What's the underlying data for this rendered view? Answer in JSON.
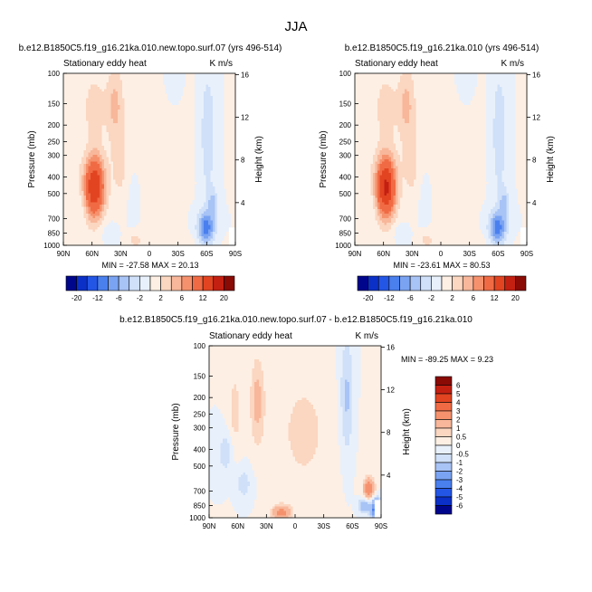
{
  "figure_title": "JJA",
  "chart_data": [
    {
      "type": "heatmap",
      "title": "b.e12.B1850C5.f19_g16.21ka.010.new.topo.surf.07 (yrs 496-514)",
      "subtitle_left": "Stationary eddy heat",
      "units": "K m/s",
      "ylabel": "Pressure (mb)",
      "ylabel_right": "Height (km)",
      "x_ticks": [
        "90N",
        "60N",
        "30N",
        "0",
        "30S",
        "60S",
        "90S"
      ],
      "y_ticks": [
        "100",
        "150",
        "200",
        "250",
        "300",
        "400",
        "500",
        "700",
        "850",
        "1000"
      ],
      "y_right_ticks": [
        "16",
        "12",
        "8",
        "4"
      ],
      "min": "-27.58",
      "max": "20.13",
      "stats_label": "MIN = -27.58   MAX =  20.13",
      "colorbar_labels": [
        "-20",
        "-12",
        "-6",
        "-2",
        "2",
        "6",
        "12",
        "20"
      ]
    },
    {
      "type": "heatmap",
      "title": "b.e12.B1850C5.f19_g16.21ka.010 (yrs 496-514)",
      "subtitle_left": "Stationary eddy heat",
      "units": "K m/s",
      "ylabel": "Pressure (mb)",
      "ylabel_right": "Height (km)",
      "x_ticks": [
        "90N",
        "60N",
        "30N",
        "0",
        "30S",
        "60S",
        "90S"
      ],
      "y_ticks": [
        "100",
        "150",
        "200",
        "250",
        "300",
        "400",
        "500",
        "700",
        "850",
        "1000"
      ],
      "y_right_ticks": [
        "16",
        "12",
        "8",
        "4"
      ],
      "min": "-23.61",
      "max": "80.53",
      "stats_label": "MIN = -23.61   MAX =  80.53",
      "colorbar_labels": [
        "-20",
        "-12",
        "-6",
        "-2",
        "2",
        "6",
        "12",
        "20"
      ]
    },
    {
      "type": "heatmap",
      "title": "b.e12.B1850C5.f19_g16.21ka.010.new.topo.surf.07 - b.e12.B1850C5.f19_g16.21ka.010",
      "subtitle_left": "Stationary eddy heat",
      "units": "K m/s",
      "ylabel": "Pressure (mb)",
      "ylabel_right": "Height (km)",
      "x_ticks": [
        "90N",
        "60N",
        "30N",
        "0",
        "30S",
        "60S",
        "90S"
      ],
      "y_ticks": [
        "100",
        "150",
        "200",
        "250",
        "300",
        "400",
        "500",
        "700",
        "850",
        "1000"
      ],
      "y_right_ticks": [
        "16",
        "12",
        "8",
        "4"
      ],
      "min": "-89.25",
      "max": "9.23",
      "stats_label": "MIN = -89.25   MAX =   9.23",
      "colorbar_labels": [
        "6",
        "5",
        "4",
        "3",
        "2",
        "1",
        "0.5",
        "0",
        "-0.5",
        "-1",
        "-2",
        "-3",
        "-4",
        "-5",
        "-6"
      ]
    }
  ],
  "colors": {
    "scale_abs": [
      "#00068c",
      "#0b30c8",
      "#2456e6",
      "#4a7fee",
      "#7aa3f2",
      "#a8c3f5",
      "#cfe0f8",
      "#e8f0fb",
      "#fdefe4",
      "#fbd6c0",
      "#f8b79a",
      "#f5926d",
      "#f06b44",
      "#e24421",
      "#c42012",
      "#8a0a06"
    ],
    "scale_diff": [
      "#8a0a06",
      "#c42012",
      "#e24421",
      "#f06b44",
      "#f5926d",
      "#f8b79a",
      "#fbd6c0",
      "#fdefe4",
      "#e8f0fb",
      "#cfe0f8",
      "#a8c3f5",
      "#7aa3f2",
      "#4a7fee",
      "#2456e6",
      "#0b30c8",
      "#00068c"
    ]
  }
}
